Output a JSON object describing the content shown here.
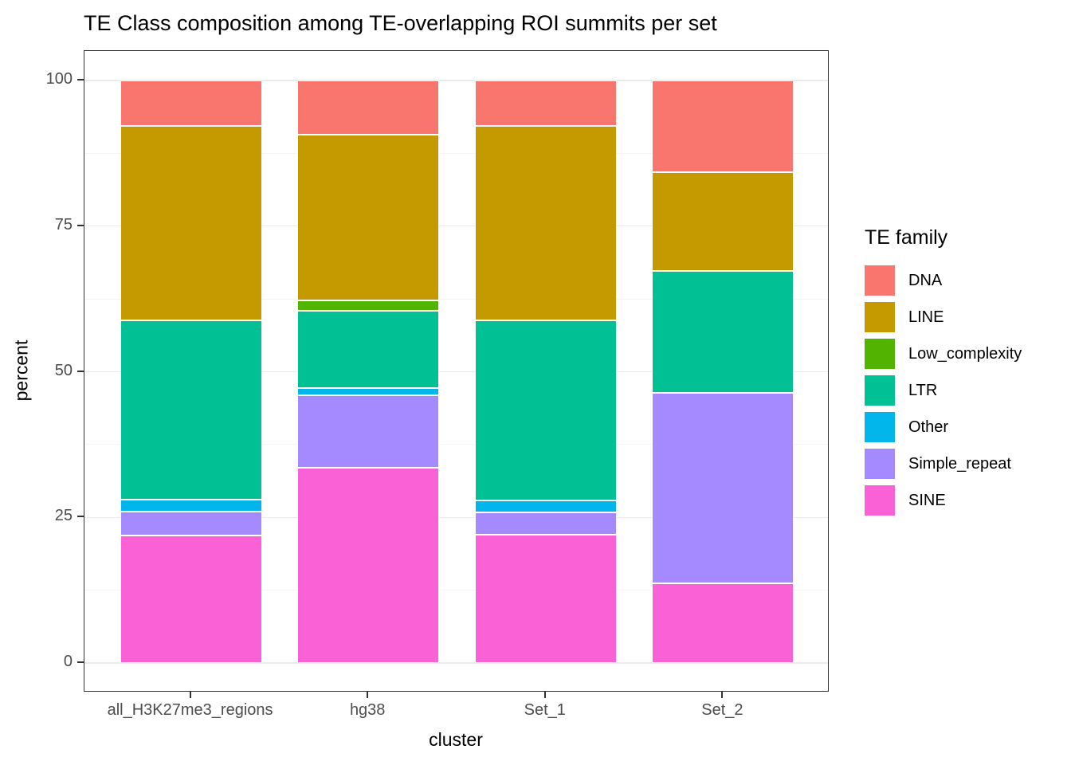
{
  "chart_data": {
    "type": "bar",
    "stacked": true,
    "orientation": "vertical",
    "title": "TE Class composition among TE-overlapping ROI summits per set",
    "xlabel": "cluster",
    "ylabel": "percent",
    "ylim": [
      0,
      100
    ],
    "yticks": [
      0,
      25,
      50,
      75,
      100
    ],
    "minor_gridlines": [
      12.5,
      37.5,
      62.5,
      87.5
    ],
    "grid": true,
    "panel_border": true,
    "legend_title": "TE family",
    "legend_position": "right",
    "categories": [
      "all_H3K27me3_regions",
      "hg38",
      "Set_1",
      "Set_2"
    ],
    "series": [
      {
        "name": "DNA",
        "color": "#F8766D",
        "values": [
          7.8,
          9.3,
          7.8,
          15.7
        ]
      },
      {
        "name": "LINE",
        "color": "#C49A00",
        "values": [
          33.4,
          28.4,
          33.4,
          17.0
        ]
      },
      {
        "name": "Low_complexity",
        "color": "#53B400",
        "values": [
          0,
          1.9,
          0,
          0
        ]
      },
      {
        "name": "LTR",
        "color": "#00C094",
        "values": [
          30.7,
          13.2,
          30.9,
          20.9
        ]
      },
      {
        "name": "Other",
        "color": "#00B6EB",
        "values": [
          2.1,
          1.2,
          2.1,
          0
        ]
      },
      {
        "name": "Simple_repeat",
        "color": "#A58AFF",
        "values": [
          4.1,
          12.5,
          3.8,
          32.7
        ]
      },
      {
        "name": "SINE",
        "color": "#FB61D7",
        "values": [
          21.9,
          33.5,
          22.0,
          13.7
        ]
      }
    ],
    "stack_order_bottom_to_top": [
      "SINE",
      "Simple_repeat",
      "Other",
      "LTR",
      "Low_complexity",
      "LINE",
      "DNA"
    ],
    "units": "percent"
  }
}
